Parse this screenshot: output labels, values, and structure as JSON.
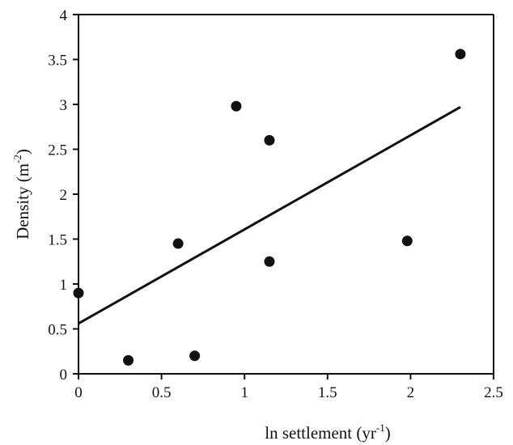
{
  "chart_data": {
    "type": "scatter",
    "title": "",
    "xlabel": "ln settlement (yr",
    "xlabel_sup": "-1",
    "xlabel_end": ")",
    "ylabel": "Density (m",
    "ylabel_sup": "-2",
    "ylabel_end": ")",
    "xlim": [
      0,
      2.5
    ],
    "ylim": [
      0,
      4
    ],
    "xticks": [
      "0",
      "0.5",
      "1",
      "1.5",
      "2",
      "2.5"
    ],
    "yticks": [
      "0",
      "0.5",
      "1",
      "1.5",
      "2",
      "2.5",
      "3",
      "3.5",
      "4"
    ],
    "grid": false,
    "series": [
      {
        "points": [
          {
            "x": 0.0,
            "y": 0.9
          },
          {
            "x": 0.3,
            "y": 0.15
          },
          {
            "x": 0.6,
            "y": 1.45
          },
          {
            "x": 0.7,
            "y": 0.2
          },
          {
            "x": 0.95,
            "y": 2.98
          },
          {
            "x": 1.15,
            "y": 2.6
          },
          {
            "x": 1.15,
            "y": 1.25
          },
          {
            "x": 1.98,
            "y": 1.48
          },
          {
            "x": 2.3,
            "y": 3.56
          }
        ]
      }
    ],
    "trendline": {
      "x": [
        0,
        2.3
      ],
      "y": [
        0.56,
        2.97
      ]
    },
    "colors": {
      "marker": "#111111",
      "line": "#111111",
      "axis": "#111111"
    }
  }
}
